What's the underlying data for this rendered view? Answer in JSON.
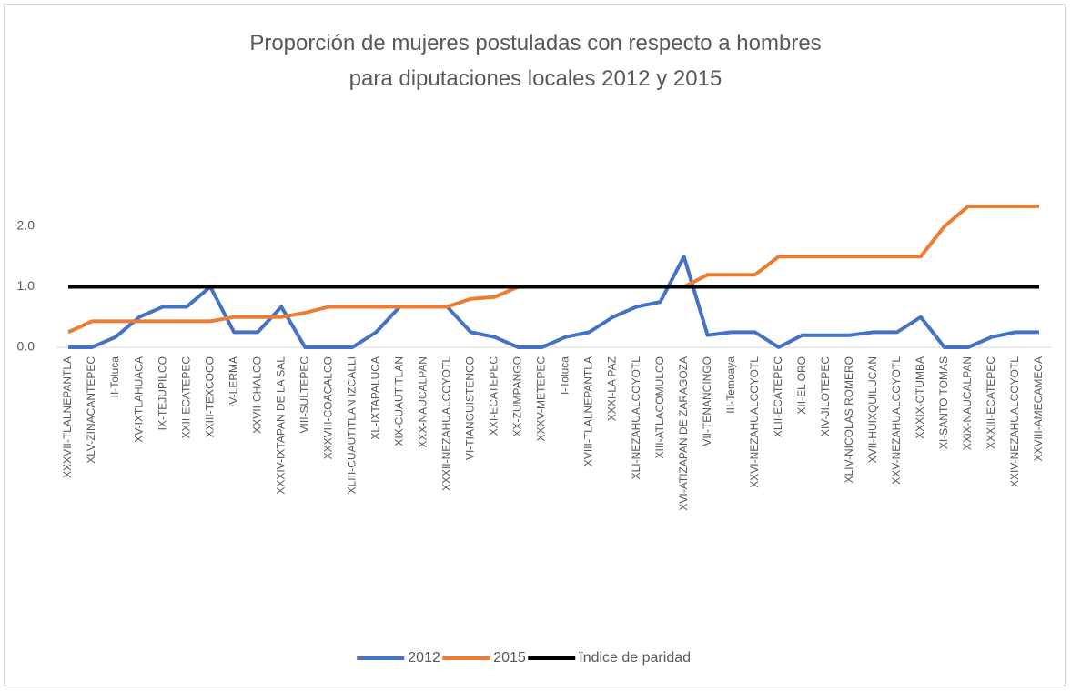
{
  "chart_data": {
    "type": "line",
    "title": "Proporción de mujeres postuladas con respecto a hombres para diputaciones locales 2012 y 2015",
    "categories": [
      "XXXVII-TLALNEPANTLA",
      "XLV-ZINACANTEPEC",
      "II-Toluca",
      "XV-IXTLAHUACA",
      "IX-TEJUPILCO",
      "XXII-ECATEPEC",
      "XXIII-TEXCOCO",
      "IV-LERMA",
      "XXVII-CHALCO",
      "XXXIV-IXTAPAN DE LA SAL",
      "VIII-SULTEPEC",
      "XXXVIII-COACALCO",
      "XLIII-CUAUTITLAN IZCALLI",
      "XL-IXTAPALUCA",
      "XIX-CUAUTITLAN",
      "XXX-NAUCALPAN",
      "XXXII-NEZAHUALCOYOTL",
      "VI-TIANGUISTENCO",
      "XXI-ECATEPEC",
      "XX-ZUMPANGO",
      "XXXV-METEPEC",
      "I-Toluca",
      "XVIII-TLALNEPANTLA",
      "XXXI-LA PAZ",
      "XLI-NEZAHUALCOYOTL",
      "XIII-ATLACOMULCO",
      "XVI-ATIZAPAN DE ZARAGOZA",
      "VII-TENANCINGO",
      "III-Temoaya",
      "XXVI-NEZAHUALCOYOTL",
      "XLII-ECATEPEC",
      "XII-EL ORO",
      "XIV-JILOTEPEC",
      "XLIV-NICOLAS ROMERO",
      "XVII-HUIXQUILUCAN",
      "XXV-NEZAHUALCOYOTL",
      "XXXIX-OTUMBA",
      "XI-SANTO TOMAS",
      "XXiX-NAUCALPAN",
      "XXXIII-ECATEPEC",
      "XXIV-NEZAHUALCOYOTL",
      "XXVIII-AMECAMECA"
    ],
    "series": [
      {
        "name": "2012",
        "color": "#4472c4",
        "values": [
          0,
          0,
          0.17,
          0.5,
          0.67,
          0.67,
          1.0,
          0.25,
          0.25,
          0.67,
          0,
          0,
          0,
          0.25,
          0.67,
          0.67,
          0.67,
          0.25,
          0.17,
          0,
          0,
          0.17,
          0.25,
          0.5,
          0.67,
          0.75,
          1.5,
          0.2,
          0.25,
          0.25,
          0,
          0.2,
          0.2,
          0.2,
          0.25,
          0.25,
          0.5,
          0,
          0,
          0.17,
          0.25,
          0.25
        ]
      },
      {
        "name": "2015",
        "color": "#ed7d31",
        "values": [
          0.25,
          0.43,
          0.43,
          0.43,
          0.43,
          0.43,
          0.43,
          0.5,
          0.5,
          0.5,
          0.57,
          0.67,
          0.67,
          0.67,
          0.67,
          0.67,
          0.67,
          0.8,
          0.83,
          1.0,
          1.0,
          1.0,
          1.0,
          1.0,
          1.0,
          1.0,
          1.0,
          1.2,
          1.2,
          1.2,
          1.5,
          1.5,
          1.5,
          1.5,
          1.5,
          1.5,
          1.5,
          2.0,
          2.33,
          2.33,
          2.33,
          2.33
        ]
      },
      {
        "name": "ïndice de paridad",
        "color": "#000000",
        "values": [
          1,
          1,
          1,
          1,
          1,
          1,
          1,
          1,
          1,
          1,
          1,
          1,
          1,
          1,
          1,
          1,
          1,
          1,
          1,
          1,
          1,
          1,
          1,
          1,
          1,
          1,
          1,
          1,
          1,
          1,
          1,
          1,
          1,
          1,
          1,
          1,
          1,
          1,
          1,
          1,
          1,
          1
        ]
      }
    ],
    "ylim": [
      0,
      3
    ],
    "yticks": [
      {
        "value": 0,
        "label": "0.0"
      },
      {
        "value": 1,
        "label": "1.0"
      },
      {
        "value": 2,
        "label": "2.0"
      }
    ],
    "grid": false,
    "legend": "bottom"
  }
}
